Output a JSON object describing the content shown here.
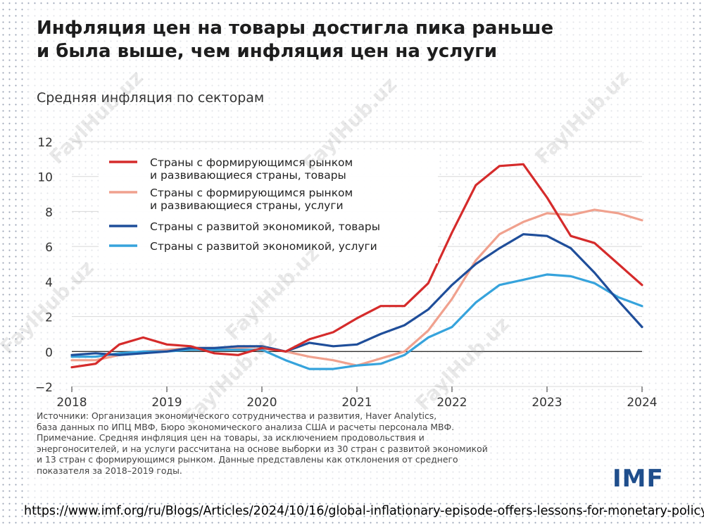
{
  "title_line1": "Инфляция цен на товары достигла пика раньше",
  "title_line2": "и была выше, чем инфляция цен на услуги",
  "subtitle": "Средняя инфляция по секторам",
  "notes": [
    "Источники: Организация экономического сотрудничества и развития, Haver Analytics,",
    "база данных по ИПЦ МВФ, Бюро экономического анализа США и расчеты персонала МВФ.",
    "Примечание. Средняя инфляция цен на товары, за исключением продовольствия и",
    "энергоносителей, и на услуги рассчитана на основе выборки из 30 стран с развитой экономикой",
    "и 13 стран с формирующимся рынком. Данные представлены как отклонения от среднего",
    "показателя за 2018–2019 годы."
  ],
  "logo": "IMF",
  "url": "https://www.imf.org/ru/Blogs/Articles/2024/10/16/global-inflationary-episode-offers-lessons-for-monetary-policy",
  "watermark": "FaylHub.uz",
  "chart_data": {
    "type": "line",
    "xlim": [
      2018,
      2024
    ],
    "ylim": [
      -2,
      12
    ],
    "xticks": [
      "2018",
      "2019",
      "2020",
      "2021",
      "2022",
      "2023",
      "2024"
    ],
    "yticks": [
      "12",
      "10",
      "8",
      "6",
      "4",
      "2",
      "0",
      "−2"
    ],
    "legend_position": "top-left",
    "grid": "horizontal",
    "series": [
      {
        "name": "Страны с формирующимся рынком и развивающиеся страны, товары",
        "label_lines": [
          "Страны с формирующимся рынком",
          "и развивающиеся страны, товары"
        ],
        "color": "#d52b2b",
        "points": [
          [
            2018.0,
            -0.9
          ],
          [
            2018.25,
            -0.7
          ],
          [
            2018.5,
            0.4
          ],
          [
            2018.75,
            0.8
          ],
          [
            2019.0,
            0.4
          ],
          [
            2019.25,
            0.3
          ],
          [
            2019.5,
            -0.1
          ],
          [
            2019.75,
            -0.2
          ],
          [
            2020.0,
            0.2
          ],
          [
            2020.25,
            0.0
          ],
          [
            2020.5,
            0.7
          ],
          [
            2020.75,
            1.1
          ],
          [
            2021.0,
            1.9
          ],
          [
            2021.25,
            2.6
          ],
          [
            2021.5,
            2.6
          ],
          [
            2021.75,
            3.9
          ],
          [
            2022.0,
            6.8
          ],
          [
            2022.25,
            9.5
          ],
          [
            2022.5,
            10.6
          ],
          [
            2022.75,
            10.7
          ],
          [
            2023.0,
            8.8
          ],
          [
            2023.25,
            6.6
          ],
          [
            2023.5,
            6.2
          ],
          [
            2023.75,
            5.0
          ],
          [
            2024.0,
            3.8
          ]
        ]
      },
      {
        "name": "Страны с формирующимся рынком и развивающиеся страны, услуги",
        "label_lines": [
          "Страны с формирующимся рынком",
          "и развивающиеся страны, услуги"
        ],
        "color": "#f0a18e",
        "points": [
          [
            2018.0,
            -0.5
          ],
          [
            2018.25,
            -0.5
          ],
          [
            2018.5,
            -0.2
          ],
          [
            2018.75,
            0.0
          ],
          [
            2019.0,
            0.1
          ],
          [
            2019.25,
            0.2
          ],
          [
            2019.5,
            0.2
          ],
          [
            2019.75,
            0.2
          ],
          [
            2020.0,
            0.3
          ],
          [
            2020.25,
            0.0
          ],
          [
            2020.5,
            -0.3
          ],
          [
            2020.75,
            -0.5
          ],
          [
            2021.0,
            -0.8
          ],
          [
            2021.25,
            -0.4
          ],
          [
            2021.5,
            0.0
          ],
          [
            2021.75,
            1.2
          ],
          [
            2022.0,
            3.0
          ],
          [
            2022.25,
            5.2
          ],
          [
            2022.5,
            6.7
          ],
          [
            2022.75,
            7.4
          ],
          [
            2023.0,
            7.9
          ],
          [
            2023.25,
            7.8
          ],
          [
            2023.5,
            8.1
          ],
          [
            2023.75,
            7.9
          ],
          [
            2024.0,
            7.5
          ]
        ]
      },
      {
        "name": "Страны с развитой экономикой, товары",
        "label_lines": [
          "Страны с развитой экономикой, товары"
        ],
        "color": "#1f4e9a",
        "points": [
          [
            2018.0,
            -0.2
          ],
          [
            2018.25,
            -0.1
          ],
          [
            2018.5,
            -0.2
          ],
          [
            2018.75,
            -0.1
          ],
          [
            2019.0,
            0.0
          ],
          [
            2019.25,
            0.2
          ],
          [
            2019.5,
            0.2
          ],
          [
            2019.75,
            0.3
          ],
          [
            2020.0,
            0.3
          ],
          [
            2020.25,
            0.0
          ],
          [
            2020.5,
            0.5
          ],
          [
            2020.75,
            0.3
          ],
          [
            2021.0,
            0.4
          ],
          [
            2021.25,
            1.0
          ],
          [
            2021.5,
            1.5
          ],
          [
            2021.75,
            2.4
          ],
          [
            2022.0,
            3.8
          ],
          [
            2022.25,
            5.0
          ],
          [
            2022.5,
            5.9
          ],
          [
            2022.75,
            6.7
          ],
          [
            2023.0,
            6.6
          ],
          [
            2023.25,
            5.9
          ],
          [
            2023.5,
            4.5
          ],
          [
            2023.75,
            2.9
          ],
          [
            2024.0,
            1.4
          ]
        ]
      },
      {
        "name": "Страны с развитой экономикой, услуги",
        "label_lines": [
          "Страны с развитой экономикой, услуги"
        ],
        "color": "#36a3dc",
        "points": [
          [
            2018.0,
            -0.3
          ],
          [
            2018.25,
            -0.3
          ],
          [
            2018.5,
            -0.1
          ],
          [
            2018.75,
            0.0
          ],
          [
            2019.0,
            0.0
          ],
          [
            2019.25,
            0.1
          ],
          [
            2019.5,
            0.1
          ],
          [
            2019.75,
            0.1
          ],
          [
            2020.0,
            0.1
          ],
          [
            2020.25,
            -0.5
          ],
          [
            2020.5,
            -1.0
          ],
          [
            2020.75,
            -1.0
          ],
          [
            2021.0,
            -0.8
          ],
          [
            2021.25,
            -0.7
          ],
          [
            2021.5,
            -0.2
          ],
          [
            2021.75,
            0.8
          ],
          [
            2022.0,
            1.4
          ],
          [
            2022.25,
            2.8
          ],
          [
            2022.5,
            3.8
          ],
          [
            2022.75,
            4.1
          ],
          [
            2023.0,
            4.4
          ],
          [
            2023.25,
            4.3
          ],
          [
            2023.5,
            3.9
          ],
          [
            2023.75,
            3.1
          ],
          [
            2024.0,
            2.6
          ]
        ]
      }
    ]
  }
}
